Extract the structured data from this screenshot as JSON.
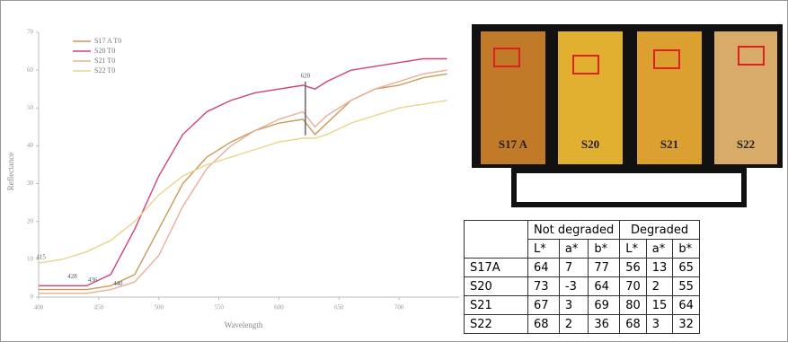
{
  "chart_data": {
    "type": "line",
    "x_label": "Wavelength",
    "y_label": "Reflectance",
    "x": [
      400,
      420,
      440,
      460,
      480,
      500,
      520,
      540,
      560,
      580,
      600,
      620,
      630,
      640,
      660,
      680,
      700,
      720,
      740
    ],
    "series": [
      {
        "name": "S17 A T0",
        "color": "#c89a58",
        "values": [
          2,
          2,
          2,
          3,
          6,
          18,
          30,
          37,
          41,
          44,
          46,
          47,
          43,
          46,
          52,
          55,
          56,
          58,
          59
        ]
      },
      {
        "name": "S20 T0",
        "color": "#d0407a",
        "values": [
          3,
          3,
          3,
          6,
          18,
          32,
          43,
          49,
          52,
          54,
          55,
          56,
          55,
          57,
          60,
          61,
          62,
          63,
          63
        ]
      },
      {
        "name": "S21 T0",
        "color": "#e8b09a",
        "values": [
          1,
          1,
          1,
          2,
          4,
          11,
          24,
          34,
          40,
          44,
          47,
          49,
          45,
          48,
          52,
          55,
          57,
          59,
          60
        ]
      },
      {
        "name": "S22 T0",
        "color": "#e6d68c",
        "values": [
          9,
          10,
          12,
          15,
          20,
          27,
          32,
          35,
          37,
          39,
          41,
          42,
          42,
          43,
          46,
          48,
          50,
          51,
          52
        ]
      }
    ],
    "xlim": [
      400,
      750
    ],
    "xticks": [
      400,
      450,
      500,
      550,
      600,
      650,
      700
    ],
    "ylim": [
      0,
      70
    ],
    "yticks": [
      0,
      10,
      20,
      30,
      40,
      50,
      60,
      70
    ],
    "annotations": [
      {
        "text": "415",
        "x": 402,
        "y": 9
      },
      {
        "text": "428",
        "x": 428,
        "y": 4
      },
      {
        "text": "436",
        "x": 445,
        "y": 3
      },
      {
        "text": "440",
        "x": 466,
        "y": 2
      },
      {
        "text": "620",
        "x": 622,
        "y": 57
      }
    ]
  },
  "photo": {
    "labels": [
      "S17 A",
      "S20",
      "S21",
      "S22"
    ]
  },
  "table": {
    "groups": [
      "Not degraded",
      "Degraded"
    ],
    "columns": [
      "L*",
      "a*",
      "b*",
      "L*",
      "a*",
      "b*"
    ],
    "rows": [
      [
        "S17A",
        "64",
        "7",
        "77",
        "56",
        "13",
        "65"
      ],
      [
        "S20",
        "73",
        "-3",
        "64",
        "70",
        "2",
        "55"
      ],
      [
        "S21",
        "67",
        "3",
        "69",
        "80",
        "15",
        "64"
      ],
      [
        "S22",
        "68",
        "2",
        "36",
        "68",
        "3",
        "32"
      ]
    ]
  }
}
